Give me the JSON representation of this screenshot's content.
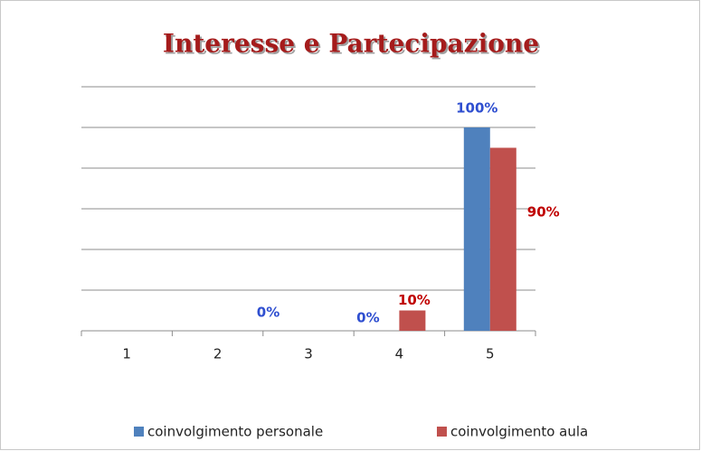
{
  "chart_data": {
    "type": "bar",
    "title": "Interesse  e Partecipazione",
    "categories": [
      "1",
      "2",
      "3",
      "4",
      "5"
    ],
    "series": [
      {
        "name": "coinvolgimento personale",
        "color": "#4f81bd",
        "values": [
          null,
          null,
          0,
          0,
          100
        ],
        "value_labels": [
          null,
          null,
          "0%",
          "0%",
          "100%"
        ],
        "label_color": "#2f4fd0"
      },
      {
        "name": "coinvolgimento aula",
        "color": "#c0504d",
        "values": [
          null,
          null,
          null,
          10,
          90
        ],
        "value_labels": [
          null,
          null,
          null,
          "10%",
          "90%"
        ],
        "label_color": "#c00000"
      }
    ],
    "ylim": [
      0,
      120
    ],
    "yticks": [
      0,
      20,
      40,
      60,
      80,
      100,
      120
    ],
    "grid": true,
    "legend": "bottom"
  }
}
